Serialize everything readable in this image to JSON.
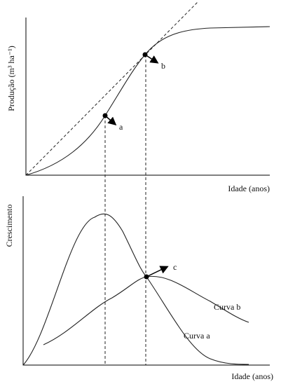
{
  "top_panel": {
    "y_label": "Produção (m³ ha⁻¹)",
    "x_label": "Idade (anos)",
    "point_labels": [
      "a",
      "b"
    ]
  },
  "bottom_panel": {
    "y_label": "Crescimento",
    "x_label": "Idade (anos)",
    "point_label": "c",
    "curve_labels": [
      "Curva b",
      "Curva a"
    ]
  }
}
